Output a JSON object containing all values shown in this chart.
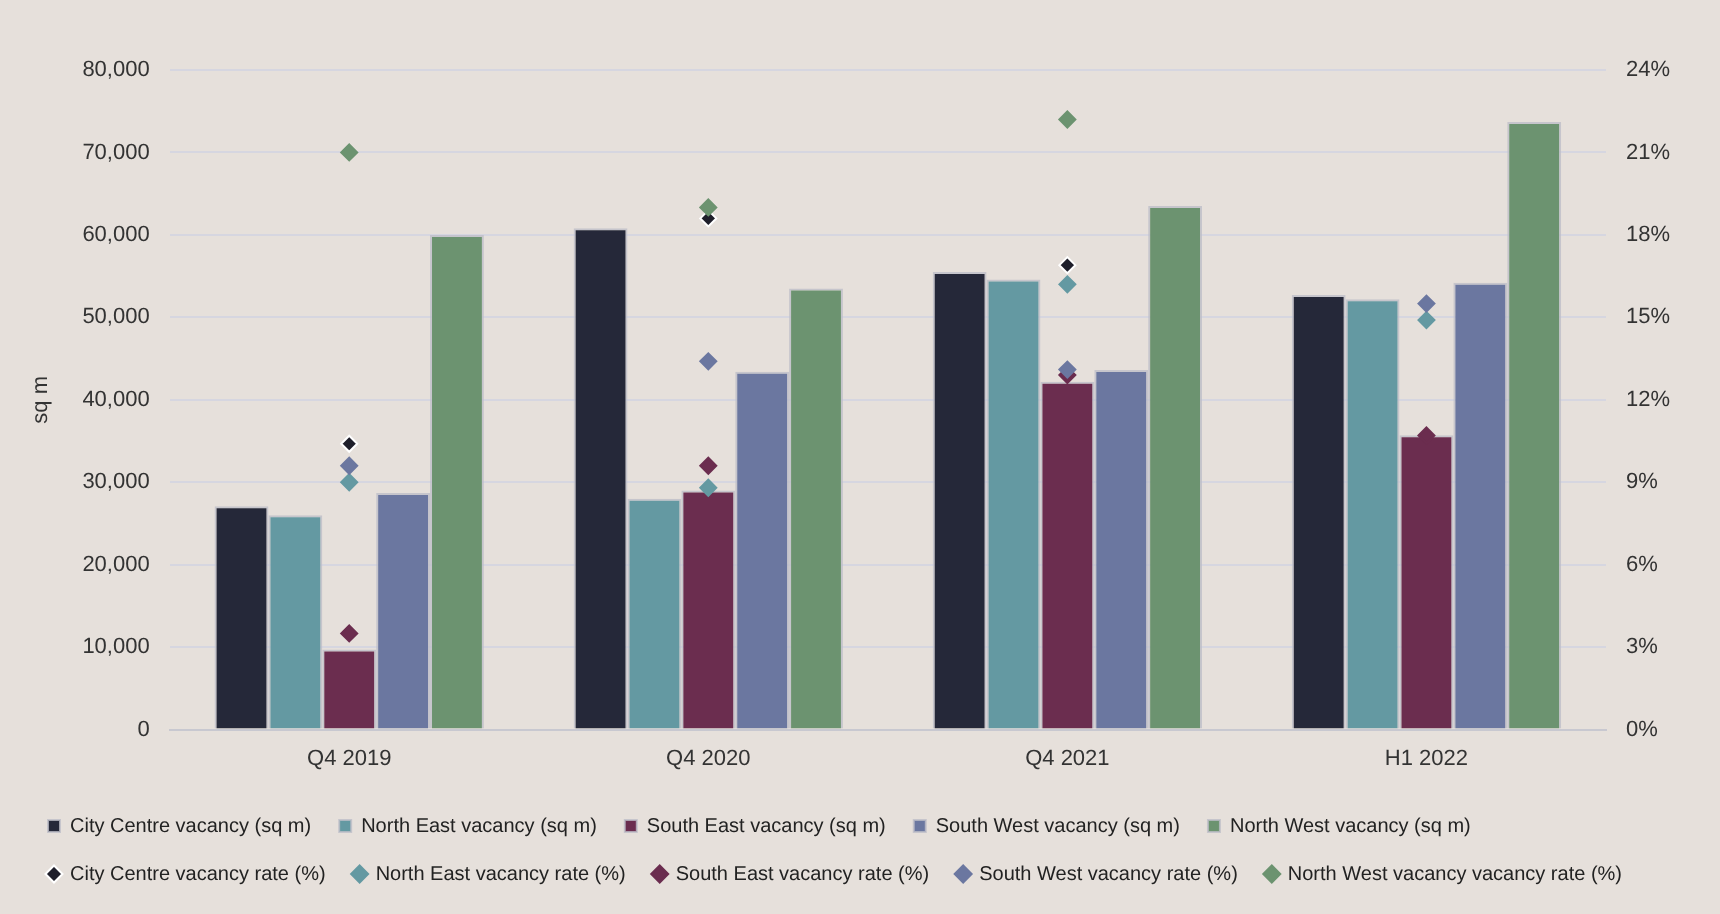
{
  "chart_data": {
    "type": "bar",
    "ylabel": "sq m",
    "categories": [
      "Q4 2019",
      "Q4 2020",
      "Q4 2021",
      "H1 2022"
    ],
    "series": [
      {
        "name": "City Centre vacancy (sq m)",
        "color": "#252839",
        "values": [
          27100,
          60800,
          55500,
          52700
        ]
      },
      {
        "name": "North East vacancy (sq m)",
        "color": "#6499a2",
        "values": [
          26000,
          28000,
          54600,
          52200
        ]
      },
      {
        "name": "South East vacancy (sq m)",
        "color": "#6b2d4f",
        "values": [
          9700,
          29000,
          42200,
          35700
        ]
      },
      {
        "name": "South West vacancy (sq m)",
        "color": "#6b77a0",
        "values": [
          28700,
          43400,
          43600,
          54200
        ]
      },
      {
        "name": "North West vacancy (sq m)",
        "color": "#6c9370",
        "values": [
          60000,
          53500,
          63500,
          73700
        ]
      },
      {
        "name": "City Centre vacancy rate (%)",
        "type": "scatter",
        "axis": "y2",
        "color": "#1e1e2a",
        "values": [
          10.4,
          18.6,
          16.9,
          null
        ]
      },
      {
        "name": "North East vacancy rate (%)",
        "type": "scatter",
        "axis": "y2",
        "color": "#6499a2",
        "values": [
          9.0,
          8.8,
          16.2,
          14.9
        ]
      },
      {
        "name": "South East vacancy rate (%)",
        "type": "scatter",
        "axis": "y2",
        "color": "#6b2d4f",
        "values": [
          3.5,
          9.6,
          12.9,
          10.7
        ]
      },
      {
        "name": "South West vacancy rate (%)",
        "type": "scatter",
        "axis": "y2",
        "color": "#6b77a0",
        "values": [
          9.6,
          13.4,
          13.1,
          15.5
        ]
      },
      {
        "name": "North West vacancy vacancy rate (%)",
        "type": "scatter",
        "axis": "y2",
        "color": "#6c9370",
        "values": [
          21.0,
          19.0,
          22.2,
          null
        ]
      }
    ],
    "ylim": [
      0,
      80000
    ],
    "yticks": [
      0,
      {
        "value": 10000,
        "label": "10,000"
      },
      {
        "value": 20000,
        "label": "20,000"
      },
      {
        "value": 30000,
        "label": "30,000"
      },
      {
        "value": 40000,
        "label": "40,000"
      },
      {
        "value": 50000,
        "label": "50,000"
      },
      {
        "value": 60000,
        "label": "60,000"
      },
      {
        "value": 70000,
        "label": "70,000"
      },
      {
        "value": 80000,
        "label": "80,000"
      }
    ],
    "y2lim": [
      0,
      24
    ],
    "y2ticks": [
      {
        "value": 0,
        "label": "0%"
      },
      {
        "value": 3,
        "label": "3%"
      },
      {
        "value": 6,
        "label": "6%"
      },
      {
        "value": 9,
        "label": "9%"
      },
      {
        "value": 12,
        "label": "12%"
      },
      {
        "value": 15,
        "label": "15%"
      },
      {
        "value": 18,
        "label": "18%"
      },
      {
        "value": 21,
        "label": "21%"
      },
      {
        "value": 24,
        "label": "24%"
      }
    ],
    "grid": "y",
    "legend": "bottom",
    "marker": "diamond"
  }
}
